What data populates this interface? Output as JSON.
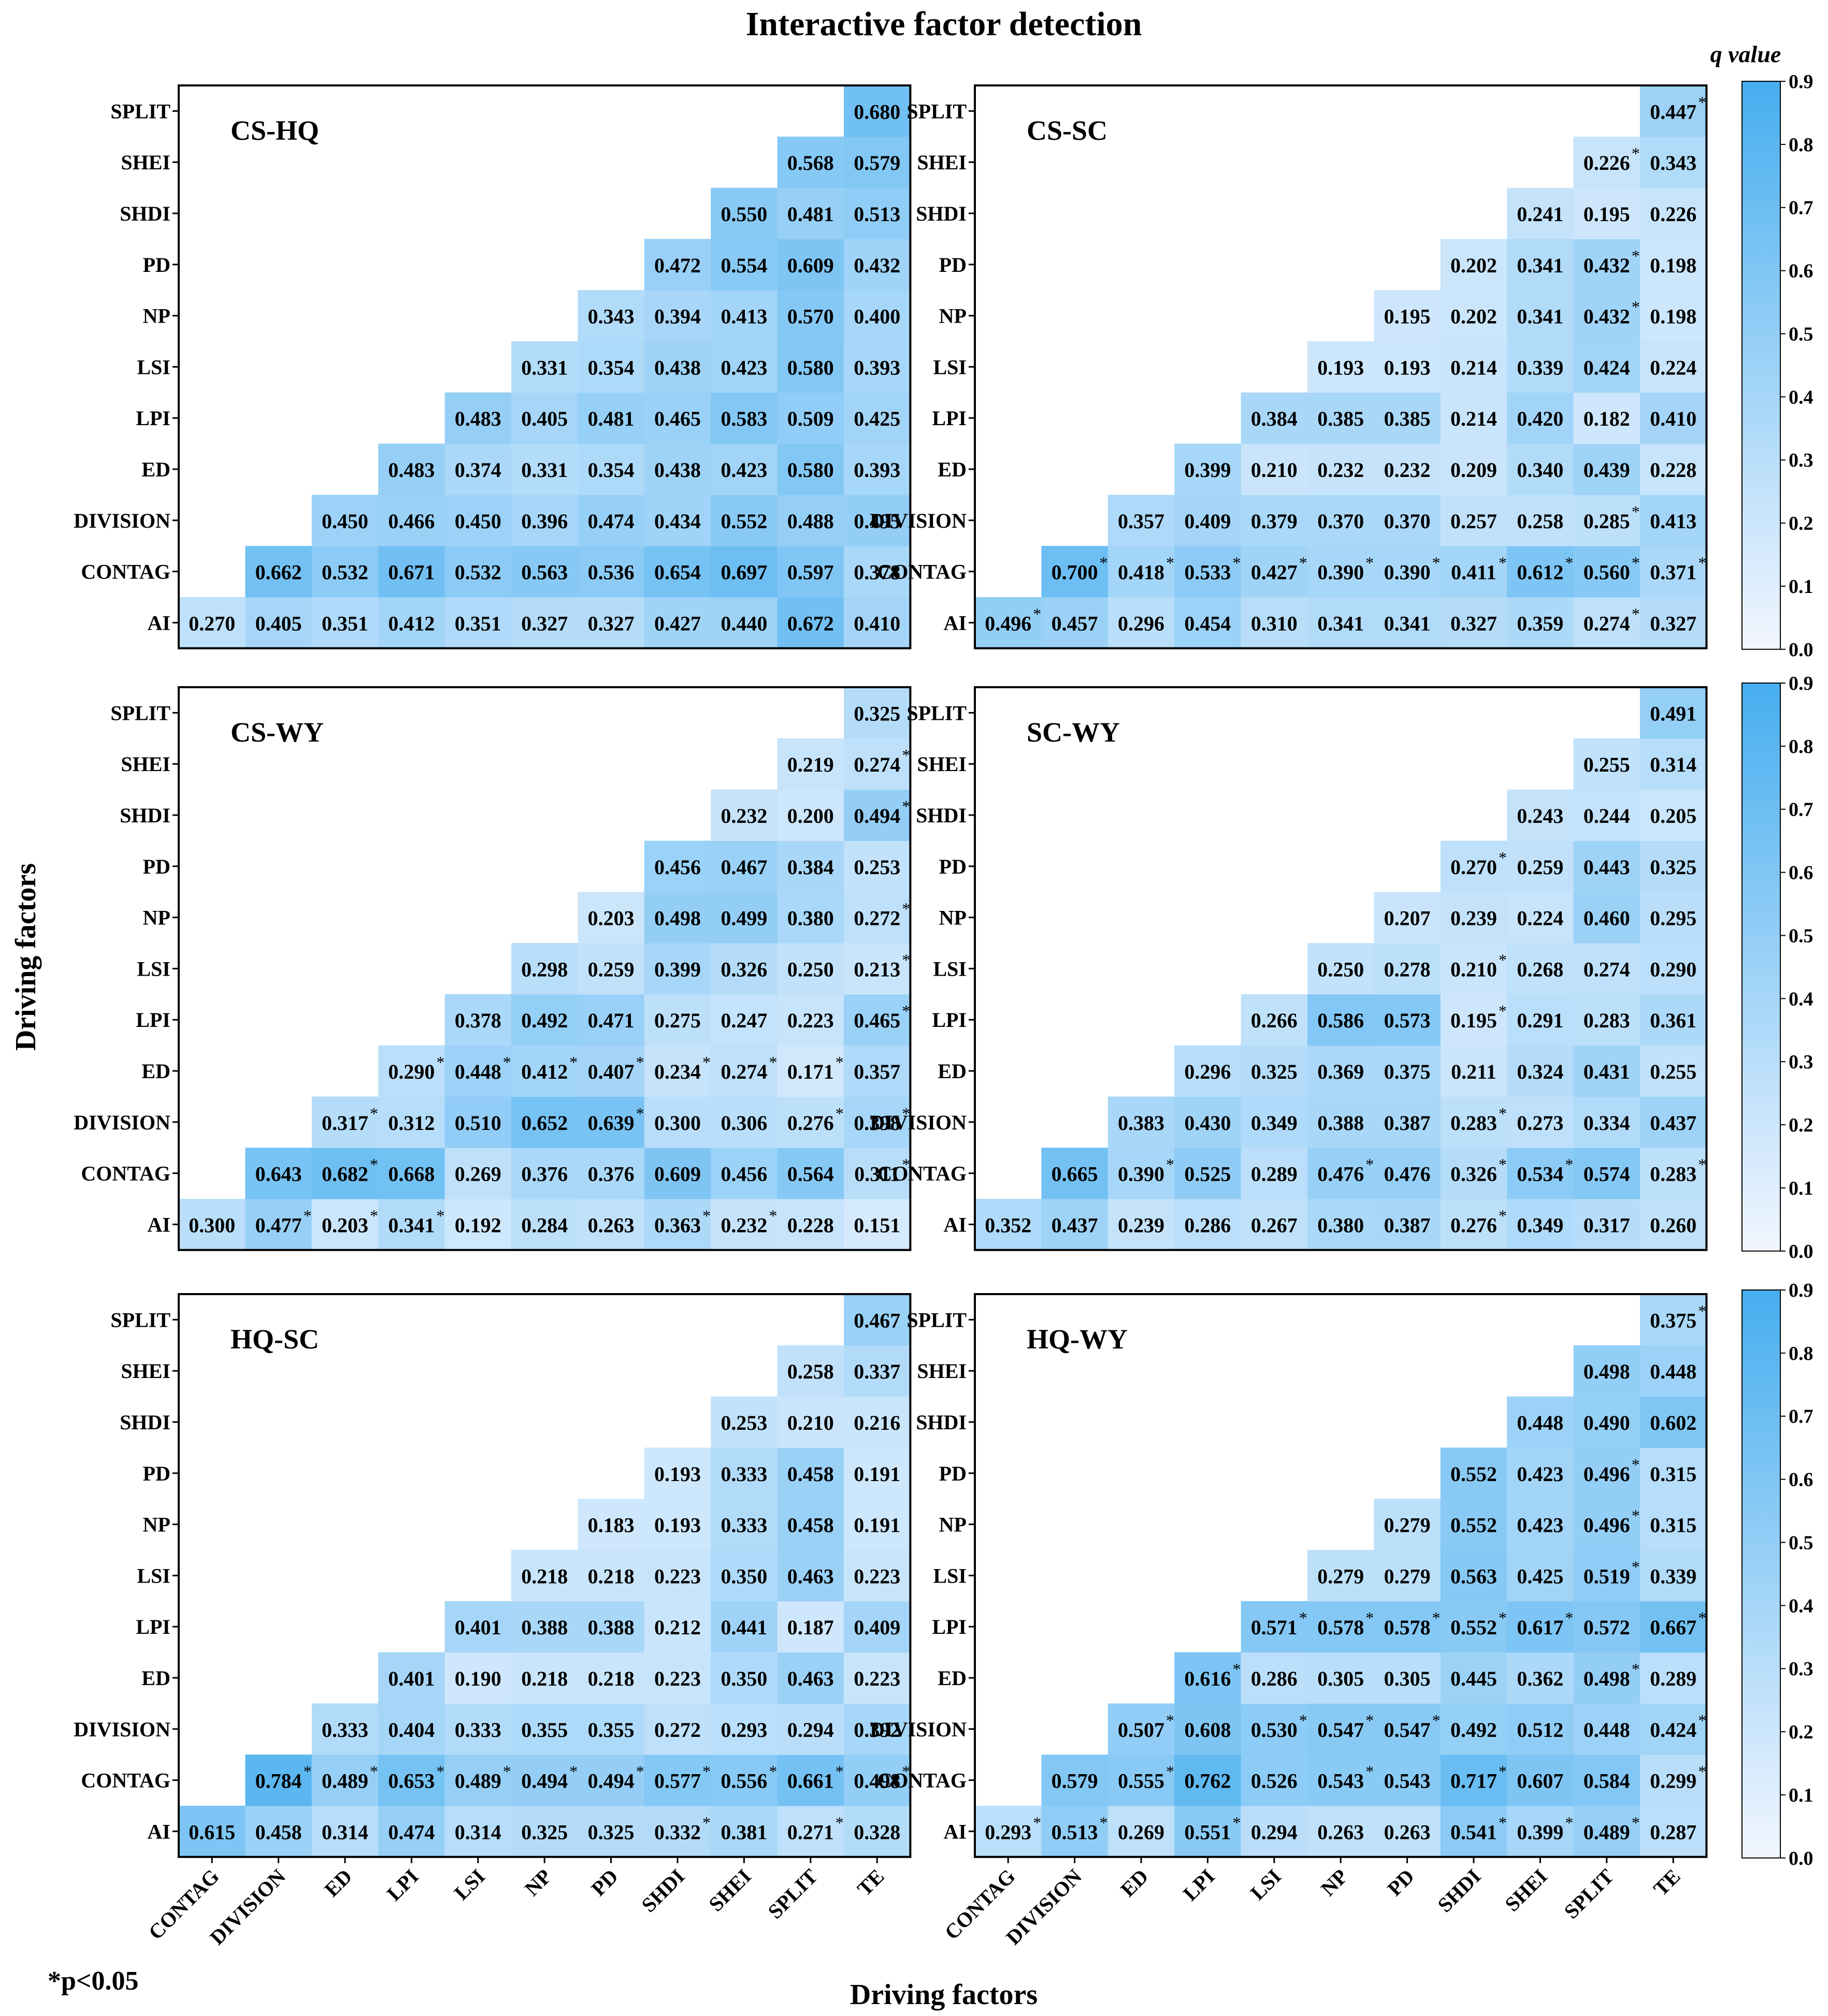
{
  "title": "Interactive factor detection",
  "xlabel": "Driving factors",
  "ylabel": "Driving factors",
  "footnote": "*p<0.05",
  "colorbar": {
    "label": "q value",
    "ticks": [
      "0.0",
      "0.1",
      "0.2",
      "0.3",
      "0.4",
      "0.5",
      "0.6",
      "0.7",
      "0.8",
      "0.9"
    ],
    "min": 0,
    "max": 0.9,
    "color_low": "#ffffff",
    "color_high": "#46aeef"
  },
  "chart_data": {
    "type": "heatmap",
    "x_categories": [
      "CONTAG",
      "DIVISION",
      "ED",
      "LPI",
      "LSI",
      "NP",
      "PD",
      "SHDI",
      "SHEI",
      "SPLIT",
      "TE"
    ],
    "y_categories": [
      "AI",
      "CONTAG",
      "DIVISION",
      "ED",
      "LPI",
      "LSI",
      "NP",
      "PD",
      "SHDI",
      "SHEI",
      "SPLIT"
    ],
    "panels": [
      {
        "name": "CS-HQ",
        "rows": [
          [
            "0.270",
            "0.405",
            "0.351",
            "0.412",
            "0.351",
            "0.327",
            "0.327",
            "0.427",
            "0.440",
            "0.672",
            "0.410"
          ],
          [
            "0.662",
            "0.532",
            "0.671",
            "0.532",
            "0.563",
            "0.536",
            "0.654",
            "0.697",
            "0.597",
            "0.378"
          ],
          [
            "0.450",
            "0.466",
            "0.450",
            "0.396",
            "0.474",
            "0.434",
            "0.552",
            "0.488",
            "0.495"
          ],
          [
            "0.483",
            "0.374",
            "0.331",
            "0.354",
            "0.438",
            "0.423",
            "0.580",
            "0.393"
          ],
          [
            "0.483",
            "0.405",
            "0.481",
            "0.465",
            "0.583",
            "0.509",
            "0.425"
          ],
          [
            "0.331",
            "0.354",
            "0.438",
            "0.423",
            "0.580",
            "0.393"
          ],
          [
            "0.343",
            "0.394",
            "0.413",
            "0.570",
            "0.400"
          ],
          [
            "0.472",
            "0.554",
            "0.609",
            "0.432"
          ],
          [
            "0.550",
            "0.481",
            "0.513"
          ],
          [
            "0.568",
            "0.579"
          ],
          [
            "0.680"
          ]
        ],
        "sig": [
          [],
          [],
          [],
          [],
          [],
          [],
          [],
          [],
          [],
          [],
          []
        ]
      },
      {
        "name": "CS-SC",
        "rows": [
          [
            "0.496",
            "0.457",
            "0.296",
            "0.454",
            "0.310",
            "0.341",
            "0.341",
            "0.327",
            "0.359",
            "0.274",
            "0.327"
          ],
          [
            "0.700",
            "0.418",
            "0.533",
            "0.427",
            "0.390",
            "0.390",
            "0.411",
            "0.612",
            "0.560",
            "0.371"
          ],
          [
            "0.357",
            "0.409",
            "0.379",
            "0.370",
            "0.370",
            "0.257",
            "0.258",
            "0.285",
            "0.413"
          ],
          [
            "0.399",
            "0.210",
            "0.232",
            "0.232",
            "0.209",
            "0.340",
            "0.439",
            "0.228"
          ],
          [
            "0.384",
            "0.385",
            "0.385",
            "0.214",
            "0.420",
            "0.182",
            "0.410"
          ],
          [
            "0.193",
            "0.193",
            "0.214",
            "0.339",
            "0.424",
            "0.224"
          ],
          [
            "0.195",
            "0.202",
            "0.341",
            "0.432",
            "0.198"
          ],
          [
            "0.202",
            "0.341",
            "0.432",
            "0.198"
          ],
          [
            "0.241",
            "0.195",
            "0.226"
          ],
          [
            "0.226",
            "0.343"
          ],
          [
            "0.447"
          ]
        ],
        "sig": [
          [
            0,
            9
          ],
          [
            0,
            1,
            2,
            3,
            4,
            5,
            6,
            7,
            8,
            9
          ],
          [
            7
          ],
          [],
          [],
          [],
          [
            3
          ],
          [
            2
          ],
          [],
          [
            0
          ],
          [
            0
          ]
        ]
      },
      {
        "name": "CS-WY",
        "rows": [
          [
            "0.300",
            "0.477",
            "0.203",
            "0.341",
            "0.192",
            "0.284",
            "0.263",
            "0.363",
            "0.232",
            "0.228",
            "0.151"
          ],
          [
            "0.643",
            "0.682",
            "0.668",
            "0.269",
            "0.376",
            "0.376",
            "0.609",
            "0.456",
            "0.564",
            "0.311"
          ],
          [
            "0.317",
            "0.312",
            "0.510",
            "0.652",
            "0.639",
            "0.300",
            "0.306",
            "0.276",
            "0.398"
          ],
          [
            "0.290",
            "0.448",
            "0.412",
            "0.407",
            "0.234",
            "0.274",
            "0.171",
            "0.357"
          ],
          [
            "0.378",
            "0.492",
            "0.471",
            "0.275",
            "0.247",
            "0.223",
            "0.465"
          ],
          [
            "0.298",
            "0.259",
            "0.399",
            "0.326",
            "0.250",
            "0.213"
          ],
          [
            "0.203",
            "0.498",
            "0.499",
            "0.380",
            "0.272"
          ],
          [
            "0.456",
            "0.467",
            "0.384",
            "0.253"
          ],
          [
            "0.232",
            "0.200",
            "0.494"
          ],
          [
            "0.219",
            "0.274"
          ],
          [
            "0.325"
          ]
        ],
        "sig": [
          [
            1,
            2,
            3,
            7,
            8
          ],
          [
            1,
            9
          ],
          [
            0,
            4,
            7,
            8
          ],
          [
            0,
            1,
            2,
            3,
            4,
            5,
            6
          ],
          [
            6
          ],
          [
            5
          ],
          [
            4
          ],
          [],
          [
            2
          ],
          [
            1
          ],
          []
        ]
      },
      {
        "name": "SC-WY",
        "rows": [
          [
            "0.352",
            "0.437",
            "0.239",
            "0.286",
            "0.267",
            "0.380",
            "0.387",
            "0.276",
            "0.349",
            "0.317",
            "0.260"
          ],
          [
            "0.665",
            "0.390",
            "0.525",
            "0.289",
            "0.476",
            "0.476",
            "0.326",
            "0.534",
            "0.574",
            "0.283"
          ],
          [
            "0.383",
            "0.430",
            "0.349",
            "0.388",
            "0.387",
            "0.283",
            "0.273",
            "0.334",
            "0.437"
          ],
          [
            "0.296",
            "0.325",
            "0.369",
            "0.375",
            "0.211",
            "0.324",
            "0.431",
            "0.255"
          ],
          [
            "0.266",
            "0.586",
            "0.573",
            "0.195",
            "0.291",
            "0.283",
            "0.361"
          ],
          [
            "0.250",
            "0.278",
            "0.210",
            "0.268",
            "0.274",
            "0.290"
          ],
          [
            "0.207",
            "0.239",
            "0.224",
            "0.460",
            "0.295"
          ],
          [
            "0.270",
            "0.259",
            "0.443",
            "0.325"
          ],
          [
            "0.243",
            "0.244",
            "0.205"
          ],
          [
            "0.255",
            "0.314"
          ],
          [
            "0.491"
          ]
        ],
        "sig": [
          [
            7
          ],
          [
            1,
            4,
            6,
            7,
            9
          ],
          [
            5
          ],
          [],
          [
            3
          ],
          [
            2
          ],
          [],
          [
            0
          ],
          [],
          [],
          []
        ]
      },
      {
        "name": "HQ-SC",
        "rows": [
          [
            "0.615",
            "0.458",
            "0.314",
            "0.474",
            "0.314",
            "0.325",
            "0.325",
            "0.332",
            "0.381",
            "0.271",
            "0.328"
          ],
          [
            "0.784",
            "0.489",
            "0.653",
            "0.489",
            "0.494",
            "0.494",
            "0.577",
            "0.556",
            "0.661",
            "0.498"
          ],
          [
            "0.333",
            "0.404",
            "0.333",
            "0.355",
            "0.355",
            "0.272",
            "0.293",
            "0.294",
            "0.392"
          ],
          [
            "0.401",
            "0.190",
            "0.218",
            "0.218",
            "0.223",
            "0.350",
            "0.463",
            "0.223"
          ],
          [
            "0.401",
            "0.388",
            "0.388",
            "0.212",
            "0.441",
            "0.187",
            "0.409"
          ],
          [
            "0.218",
            "0.218",
            "0.223",
            "0.350",
            "0.463",
            "0.223"
          ],
          [
            "0.183",
            "0.193",
            "0.333",
            "0.458",
            "0.191"
          ],
          [
            "0.193",
            "0.333",
            "0.458",
            "0.191"
          ],
          [
            "0.253",
            "0.210",
            "0.216"
          ],
          [
            "0.258",
            "0.337"
          ],
          [
            "0.467"
          ]
        ],
        "sig": [
          [
            7,
            9
          ],
          [
            0,
            1,
            2,
            3,
            4,
            5,
            6,
            7,
            8,
            9
          ],
          [],
          [],
          [],
          [],
          [],
          [],
          [],
          [],
          []
        ]
      },
      {
        "name": "HQ-WY",
        "rows": [
          [
            "0.293",
            "0.513",
            "0.269",
            "0.551",
            "0.294",
            "0.263",
            "0.263",
            "0.541",
            "0.399",
            "0.489",
            "0.287"
          ],
          [
            "0.579",
            "0.555",
            "0.762",
            "0.526",
            "0.543",
            "0.543",
            "0.717",
            "0.607",
            "0.584",
            "0.299"
          ],
          [
            "0.507",
            "0.608",
            "0.530",
            "0.547",
            "0.547",
            "0.492",
            "0.512",
            "0.448",
            "0.424"
          ],
          [
            "0.616",
            "0.286",
            "0.305",
            "0.305",
            "0.445",
            "0.362",
            "0.498",
            "0.289"
          ],
          [
            "0.571",
            "0.578",
            "0.578",
            "0.552",
            "0.617",
            "0.572",
            "0.667"
          ],
          [
            "0.279",
            "0.279",
            "0.563",
            "0.425",
            "0.519",
            "0.339"
          ],
          [
            "0.279",
            "0.552",
            "0.423",
            "0.496",
            "0.315"
          ],
          [
            "0.552",
            "0.423",
            "0.496",
            "0.315"
          ],
          [
            "0.448",
            "0.490",
            "0.602"
          ],
          [
            "0.498",
            "0.448"
          ],
          [
            "0.375"
          ]
        ],
        "sig": [
          [
            0,
            1,
            3,
            7,
            8,
            9
          ],
          [
            1,
            4,
            6,
            9
          ],
          [
            0,
            2,
            3,
            4,
            8
          ],
          [
            0,
            6
          ],
          [
            0,
            1,
            2,
            3,
            4,
            6
          ],
          [
            4
          ],
          [
            3
          ],
          [
            2
          ],
          [],
          [],
          [
            0
          ]
        ]
      }
    ]
  }
}
